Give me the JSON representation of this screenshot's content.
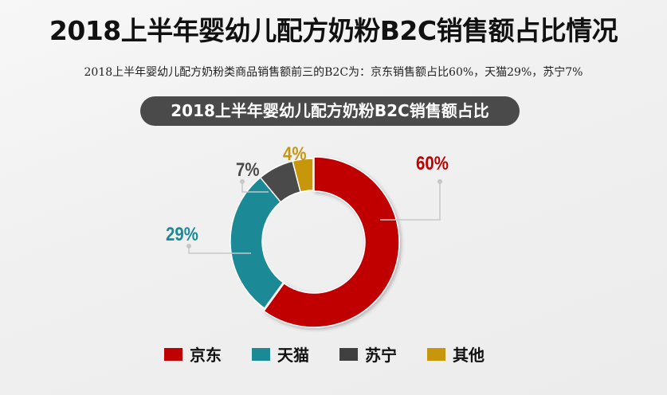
{
  "header": {
    "title": "2018上半年婴幼儿配方奶粉B2C销售额占比情况",
    "subtitle": "2018上半年婴幼儿配方奶粉类商品销售额前三的B2C为：京东销售额占比60%，天猫29%，苏宁7%",
    "chart_title": "2018上半年婴幼儿配方奶粉B2C销售额占比"
  },
  "labels": {
    "jd": "60%",
    "tmall": "29%",
    "suning": "7%",
    "other": "4%"
  },
  "legend": [
    {
      "label": "京东",
      "color": "#c00000"
    },
    {
      "label": "天猫",
      "color": "#1b8a96"
    },
    {
      "label": "苏宁",
      "color": "#404040"
    },
    {
      "label": "其他",
      "color": "#c8960a"
    }
  ],
  "colors": {
    "jd": "#c00000",
    "tmall": "#1b8a96",
    "suning": "#4a4a4a",
    "other": "#c8960a",
    "pill_bg": "#4a4a4a",
    "leader_line": "#c8c8c8"
  },
  "chart_data": {
    "type": "pie",
    "subtype": "donut",
    "title": "2018上半年婴幼儿配方奶粉B2C销售额占比",
    "categories": [
      "京东",
      "天猫",
      "苏宁",
      "其他"
    ],
    "values": [
      60,
      29,
      7,
      4
    ],
    "unit": "%",
    "colors": [
      "#c00000",
      "#1b8a96",
      "#4a4a4a",
      "#c8960a"
    ],
    "legend_position": "bottom",
    "data_labels": [
      "60%",
      "29%",
      "7%",
      "4%"
    ]
  }
}
